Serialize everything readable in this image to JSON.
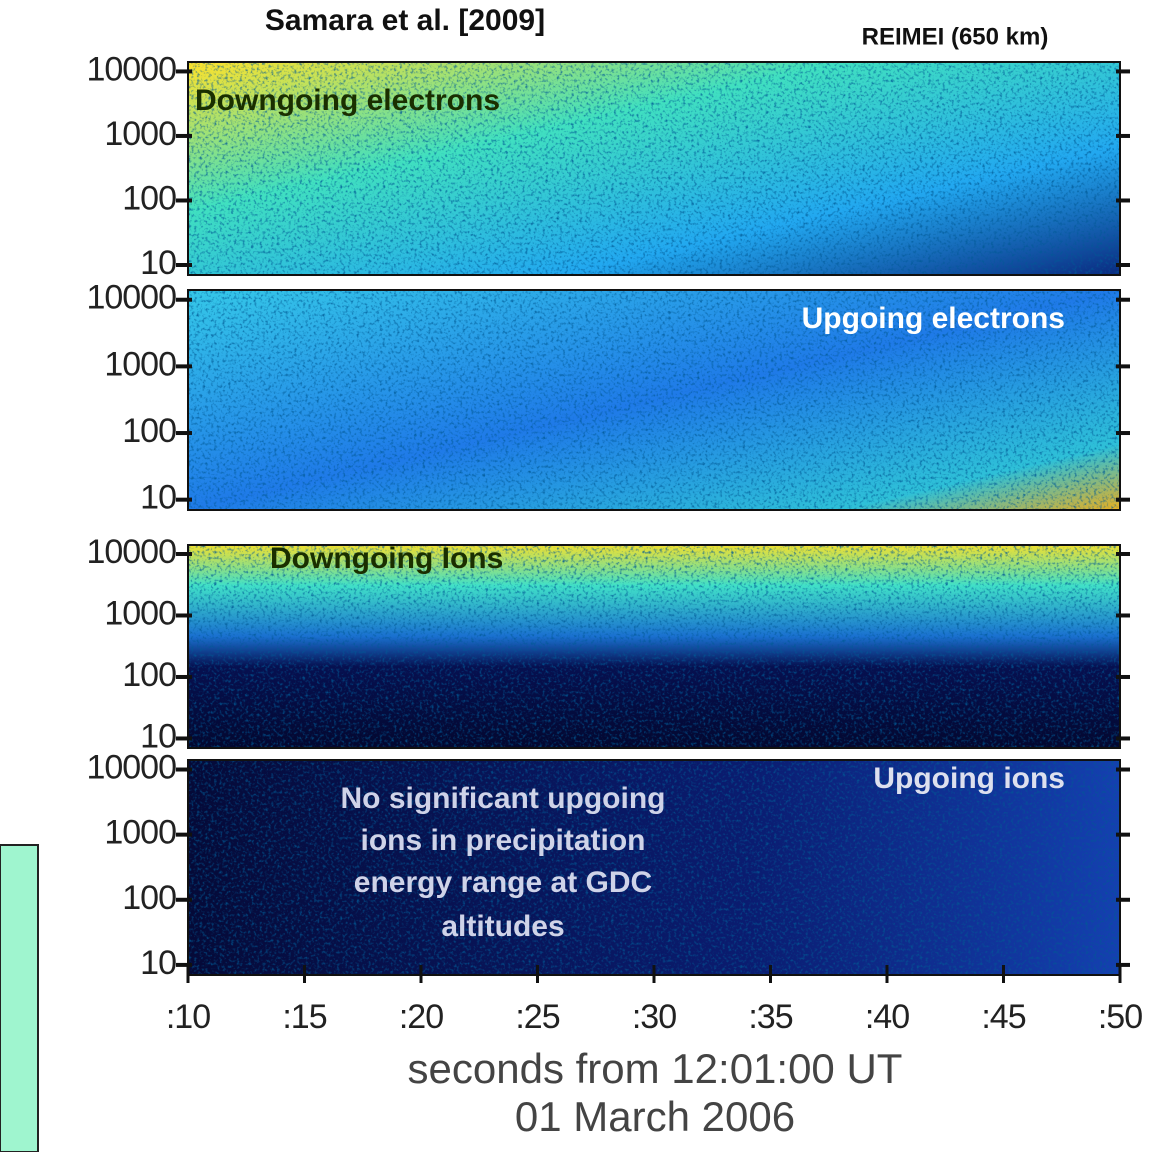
{
  "chart_data": [
    {
      "type": "spectrogram",
      "title": "Samara et al. [2009]",
      "subtitle": "REIMEI (650 km)",
      "annotation": [
        "Downgoing electrons"
      ],
      "log": true,
      "ylim": [
        7,
        14000
      ],
      "yticks": [
        10,
        100,
        1000,
        10000
      ]
    },
    {
      "type": "spectrogram",
      "annotation": [
        "Upgoing electrons"
      ],
      "log": true,
      "ylim": [
        7,
        14000
      ],
      "yticks": [
        10,
        100,
        1000,
        10000
      ]
    },
    {
      "type": "spectrogram",
      "annotation": [
        "Downgoing Ions"
      ],
      "log": true,
      "ylim": [
        7,
        14000
      ],
      "yticks": [
        10,
        100,
        1000,
        10000
      ]
    },
    {
      "type": "spectrogram",
      "annotation": [
        "Upgoing ions",
        "No significant upgoing",
        "ions in precipitation",
        "energy range at GDC",
        "altitudes"
      ],
      "log": true,
      "ylim": [
        7,
        14000
      ],
      "yticks": [
        10,
        100,
        1000,
        10000
      ],
      "xlim": [
        10,
        50
      ],
      "xticks": [
        {
          "value": 10,
          "label": ":10"
        },
        {
          "value": 15,
          "label": ":15"
        },
        {
          "value": 20,
          "label": ":20"
        },
        {
          "value": 25,
          "label": ":25"
        },
        {
          "value": 30,
          "label": ":30"
        },
        {
          "value": 35,
          "label": ":35"
        },
        {
          "value": 40,
          "label": ":40"
        },
        {
          "value": 45,
          "label": ":45"
        },
        {
          "value": 50,
          "label": ":50"
        }
      ],
      "xlabel": [
        "seconds from 12:01:00 UT",
        "01 March 2006"
      ]
    }
  ]
}
